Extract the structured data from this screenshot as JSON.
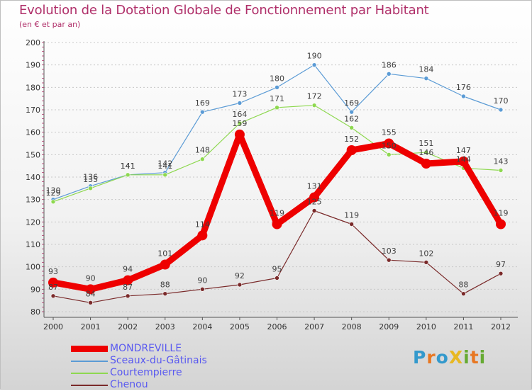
{
  "title": "Evolution de la Dotation Globale de Fonctionnement par Habitant",
  "subtitle": "(en € et par an)",
  "chart_data": {
    "type": "line",
    "title": "Evolution de la Dotation Globale de Fonctionnement par Habitant",
    "subtitle": "(en € et par an)",
    "x": [
      "2000",
      "2001",
      "2002",
      "2003",
      "2004",
      "2005",
      "2006",
      "2007",
      "2008",
      "2009",
      "2010",
      "2011",
      "2012"
    ],
    "ylim": [
      80,
      200
    ],
    "yticks": [
      "80",
      "90",
      "100",
      "110",
      "120",
      "130",
      "140",
      "150",
      "160",
      "170",
      "180",
      "190",
      "200"
    ],
    "grid": "horizontal dashed",
    "legend_position": "bottom-left",
    "series": [
      {
        "name": "MONDREVILLE",
        "color": "#ee0000",
        "values": [
          93,
          90,
          94,
          101,
          114,
          159,
          119,
          131,
          152,
          155,
          146,
          147,
          119
        ],
        "labels": [
          "93",
          "90",
          "94",
          "101",
          "114",
          "159",
          "119",
          "131",
          "152",
          "155",
          "146",
          "147",
          "119"
        ]
      },
      {
        "name": "Sceaux-du-Gâtinais",
        "color": "#5b9bd5",
        "values": [
          130,
          136,
          141,
          142,
          169,
          173,
          180,
          190,
          169,
          186,
          184,
          176,
          170
        ],
        "labels": [
          "130",
          "136",
          "141",
          "142",
          "169",
          "173",
          "180",
          "190",
          "169",
          "186",
          "184",
          "176",
          "170"
        ]
      },
      {
        "name": "Courtempierre",
        "color": "#8ed850",
        "values": [
          129,
          135,
          141,
          141,
          148,
          164,
          171,
          172,
          162,
          150,
          151,
          144,
          143
        ],
        "labels": [
          "129",
          "135",
          "141",
          "141",
          "148",
          "164",
          "171",
          "172",
          "162",
          "150",
          "151",
          "144",
          "143"
        ]
      },
      {
        "name": "Chenou",
        "color": "#7a2a2a",
        "values": [
          87,
          84,
          87,
          88,
          90,
          92,
          95,
          125,
          119,
          103,
          102,
          88,
          97
        ],
        "labels": [
          "87",
          "84",
          "87",
          "88",
          "90",
          "92",
          "95",
          "125",
          "119",
          "103",
          "102",
          "88",
          "97"
        ]
      }
    ]
  },
  "logo": {
    "text": "ProXiti",
    "letters": [
      "P",
      "r",
      "o",
      "X",
      "i",
      "t",
      "i"
    ],
    "colors": [
      "#3399cc",
      "#e87722",
      "#3399cc",
      "#e8b822",
      "#66aa33",
      "#e87722",
      "#66aa33"
    ]
  }
}
